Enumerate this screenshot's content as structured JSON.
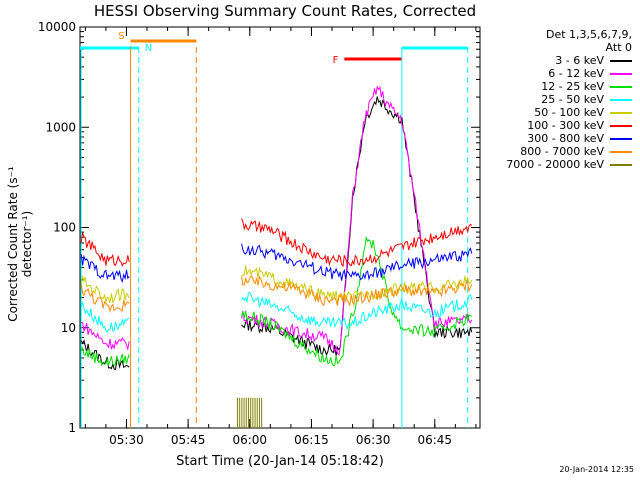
{
  "title": "HESSI Observing Summary Count Rates, Corrected",
  "ylabel": "Corrected Count Rate (s⁻¹ detector⁻¹)",
  "xlabel": "Start Time (20-Jan-14 05:18:42)",
  "timestamp": "20-Jan-2014 12:35",
  "legend": {
    "header_line1": "Det 1,3,5,6,7,9,",
    "header_line2": "Att 0",
    "entries": [
      {
        "label": "3 - 6 keV",
        "color": "#000000"
      },
      {
        "label": "6 - 12 keV",
        "color": "#ff00ff"
      },
      {
        "label": "12 - 25 keV",
        "color": "#00dd00"
      },
      {
        "label": "25 - 50 keV",
        "color": "#00ffff"
      },
      {
        "label": "50 - 100 keV",
        "color": "#cccc00"
      },
      {
        "label": "100 - 300 keV",
        "color": "#ff0000"
      },
      {
        "label": "300 - 800 keV",
        "color": "#0000ff"
      },
      {
        "label": "800 - 7000 keV",
        "color": "#ff8800"
      },
      {
        "label": "7000 - 20000 keV",
        "color": "#808000"
      }
    ]
  },
  "chart_data": {
    "type": "line",
    "title": "HESSI Observing Summary Count Rates, Corrected",
    "xlabel": "Start Time (20-Jan-14 05:18:42)",
    "ylabel": "Corrected Count Rate (s⁻¹ detector⁻¹)",
    "y_scale": "log",
    "ylim": [
      1,
      10000
    ],
    "xlim": [
      "05:18:42",
      "06:56:00"
    ],
    "x_ticks": [
      "05:30",
      "05:45",
      "06:00",
      "06:15",
      "06:30",
      "06:45"
    ],
    "y_ticks": [
      "1",
      "10",
      "100",
      "1000",
      "10000"
    ],
    "data_gap": [
      "05:32",
      "05:58"
    ],
    "series": [
      {
        "name": "3 - 6 keV",
        "x": [
          "05:19",
          "05:25",
          "05:31",
          "05:58",
          "06:05",
          "06:12",
          "06:18",
          "06:22",
          "06:25",
          "06:28",
          "06:31",
          "06:34",
          "06:37",
          "06:45",
          "06:54"
        ],
        "values": [
          7,
          4.5,
          4,
          11,
          10,
          7.5,
          6,
          6,
          200,
          1200,
          1950,
          1500,
          1200,
          9,
          9
        ]
      },
      {
        "name": "6 - 12 keV",
        "x": [
          "05:19",
          "05:25",
          "05:31",
          "05:58",
          "06:05",
          "06:12",
          "06:18",
          "06:22",
          "06:25",
          "06:28",
          "06:31",
          "06:34",
          "06:37",
          "06:45",
          "06:54"
        ],
        "values": [
          11,
          7,
          7,
          13,
          11,
          9,
          8,
          6,
          200,
          1250,
          2500,
          1600,
          1200,
          11,
          12
        ]
      },
      {
        "name": "12 - 25 keV",
        "x": [
          "05:19",
          "05:25",
          "05:31",
          "05:58",
          "06:05",
          "06:12",
          "06:18",
          "06:22",
          "06:26",
          "06:28",
          "06:30",
          "06:32",
          "06:34",
          "06:37",
          "06:45",
          "06:54"
        ],
        "values": [
          6,
          4.5,
          5,
          14,
          11,
          7,
          5,
          4.5,
          20,
          70,
          70,
          40,
          17,
          10,
          9,
          13
        ]
      },
      {
        "name": "25 - 50 keV",
        "x": [
          "05:19",
          "05:25",
          "05:31",
          "05:58",
          "06:05",
          "06:12",
          "06:18",
          "06:25",
          "06:30",
          "06:37",
          "06:45",
          "06:54"
        ],
        "values": [
          17,
          10,
          11,
          21,
          17,
          13,
          11,
          11,
          14,
          17,
          14,
          19
        ]
      },
      {
        "name": "50 - 100 keV",
        "x": [
          "05:19",
          "05:25",
          "05:31",
          "05:58",
          "06:05",
          "06:12",
          "06:18",
          "06:25",
          "06:30",
          "06:37",
          "06:45",
          "06:54"
        ],
        "values": [
          30,
          20,
          22,
          38,
          32,
          25,
          21,
          20,
          22,
          25,
          25,
          30
        ]
      },
      {
        "name": "100 - 300 keV",
        "x": [
          "05:19",
          "05:25",
          "05:31",
          "05:58",
          "06:05",
          "06:12",
          "06:18",
          "06:25",
          "06:30",
          "06:37",
          "06:45",
          "06:54"
        ],
        "values": [
          80,
          47,
          48,
          108,
          95,
          65,
          49,
          46,
          50,
          63,
          82,
          105
        ]
      },
      {
        "name": "300 - 800 keV",
        "x": [
          "05:19",
          "05:25",
          "05:31",
          "05:58",
          "06:05",
          "06:12",
          "06:18",
          "06:25",
          "06:30",
          "06:37",
          "06:45",
          "06:54"
        ],
        "values": [
          48,
          33,
          33,
          62,
          55,
          45,
          36,
          32,
          34,
          42,
          47,
          55
        ]
      },
      {
        "name": "800 - 7000 keV",
        "x": [
          "05:19",
          "05:25",
          "05:31",
          "05:58",
          "06:05",
          "06:12",
          "06:18",
          "06:25",
          "06:30",
          "06:37",
          "06:45",
          "06:54"
        ],
        "values": [
          25,
          16,
          17,
          30,
          27,
          24,
          19,
          19,
          21,
          24,
          22,
          27
        ]
      },
      {
        "name": "7000 - 20000 keV",
        "x": [
          "05:57",
          "06:00",
          "06:03"
        ],
        "values": [
          2,
          2,
          2
        ]
      }
    ],
    "flags": [
      {
        "label": "S",
        "color": "#ff8800",
        "start": "05:31",
        "end": "05:47"
      },
      {
        "label": "N",
        "color": "#00ffff",
        "start": "05:18:42",
        "end": "05:33"
      },
      {
        "label": "F",
        "color": "#ff0000",
        "start": "06:23",
        "end": "06:37"
      },
      {
        "label": "",
        "color": "#00ffff",
        "start": "06:37",
        "end": "06:53"
      }
    ]
  }
}
